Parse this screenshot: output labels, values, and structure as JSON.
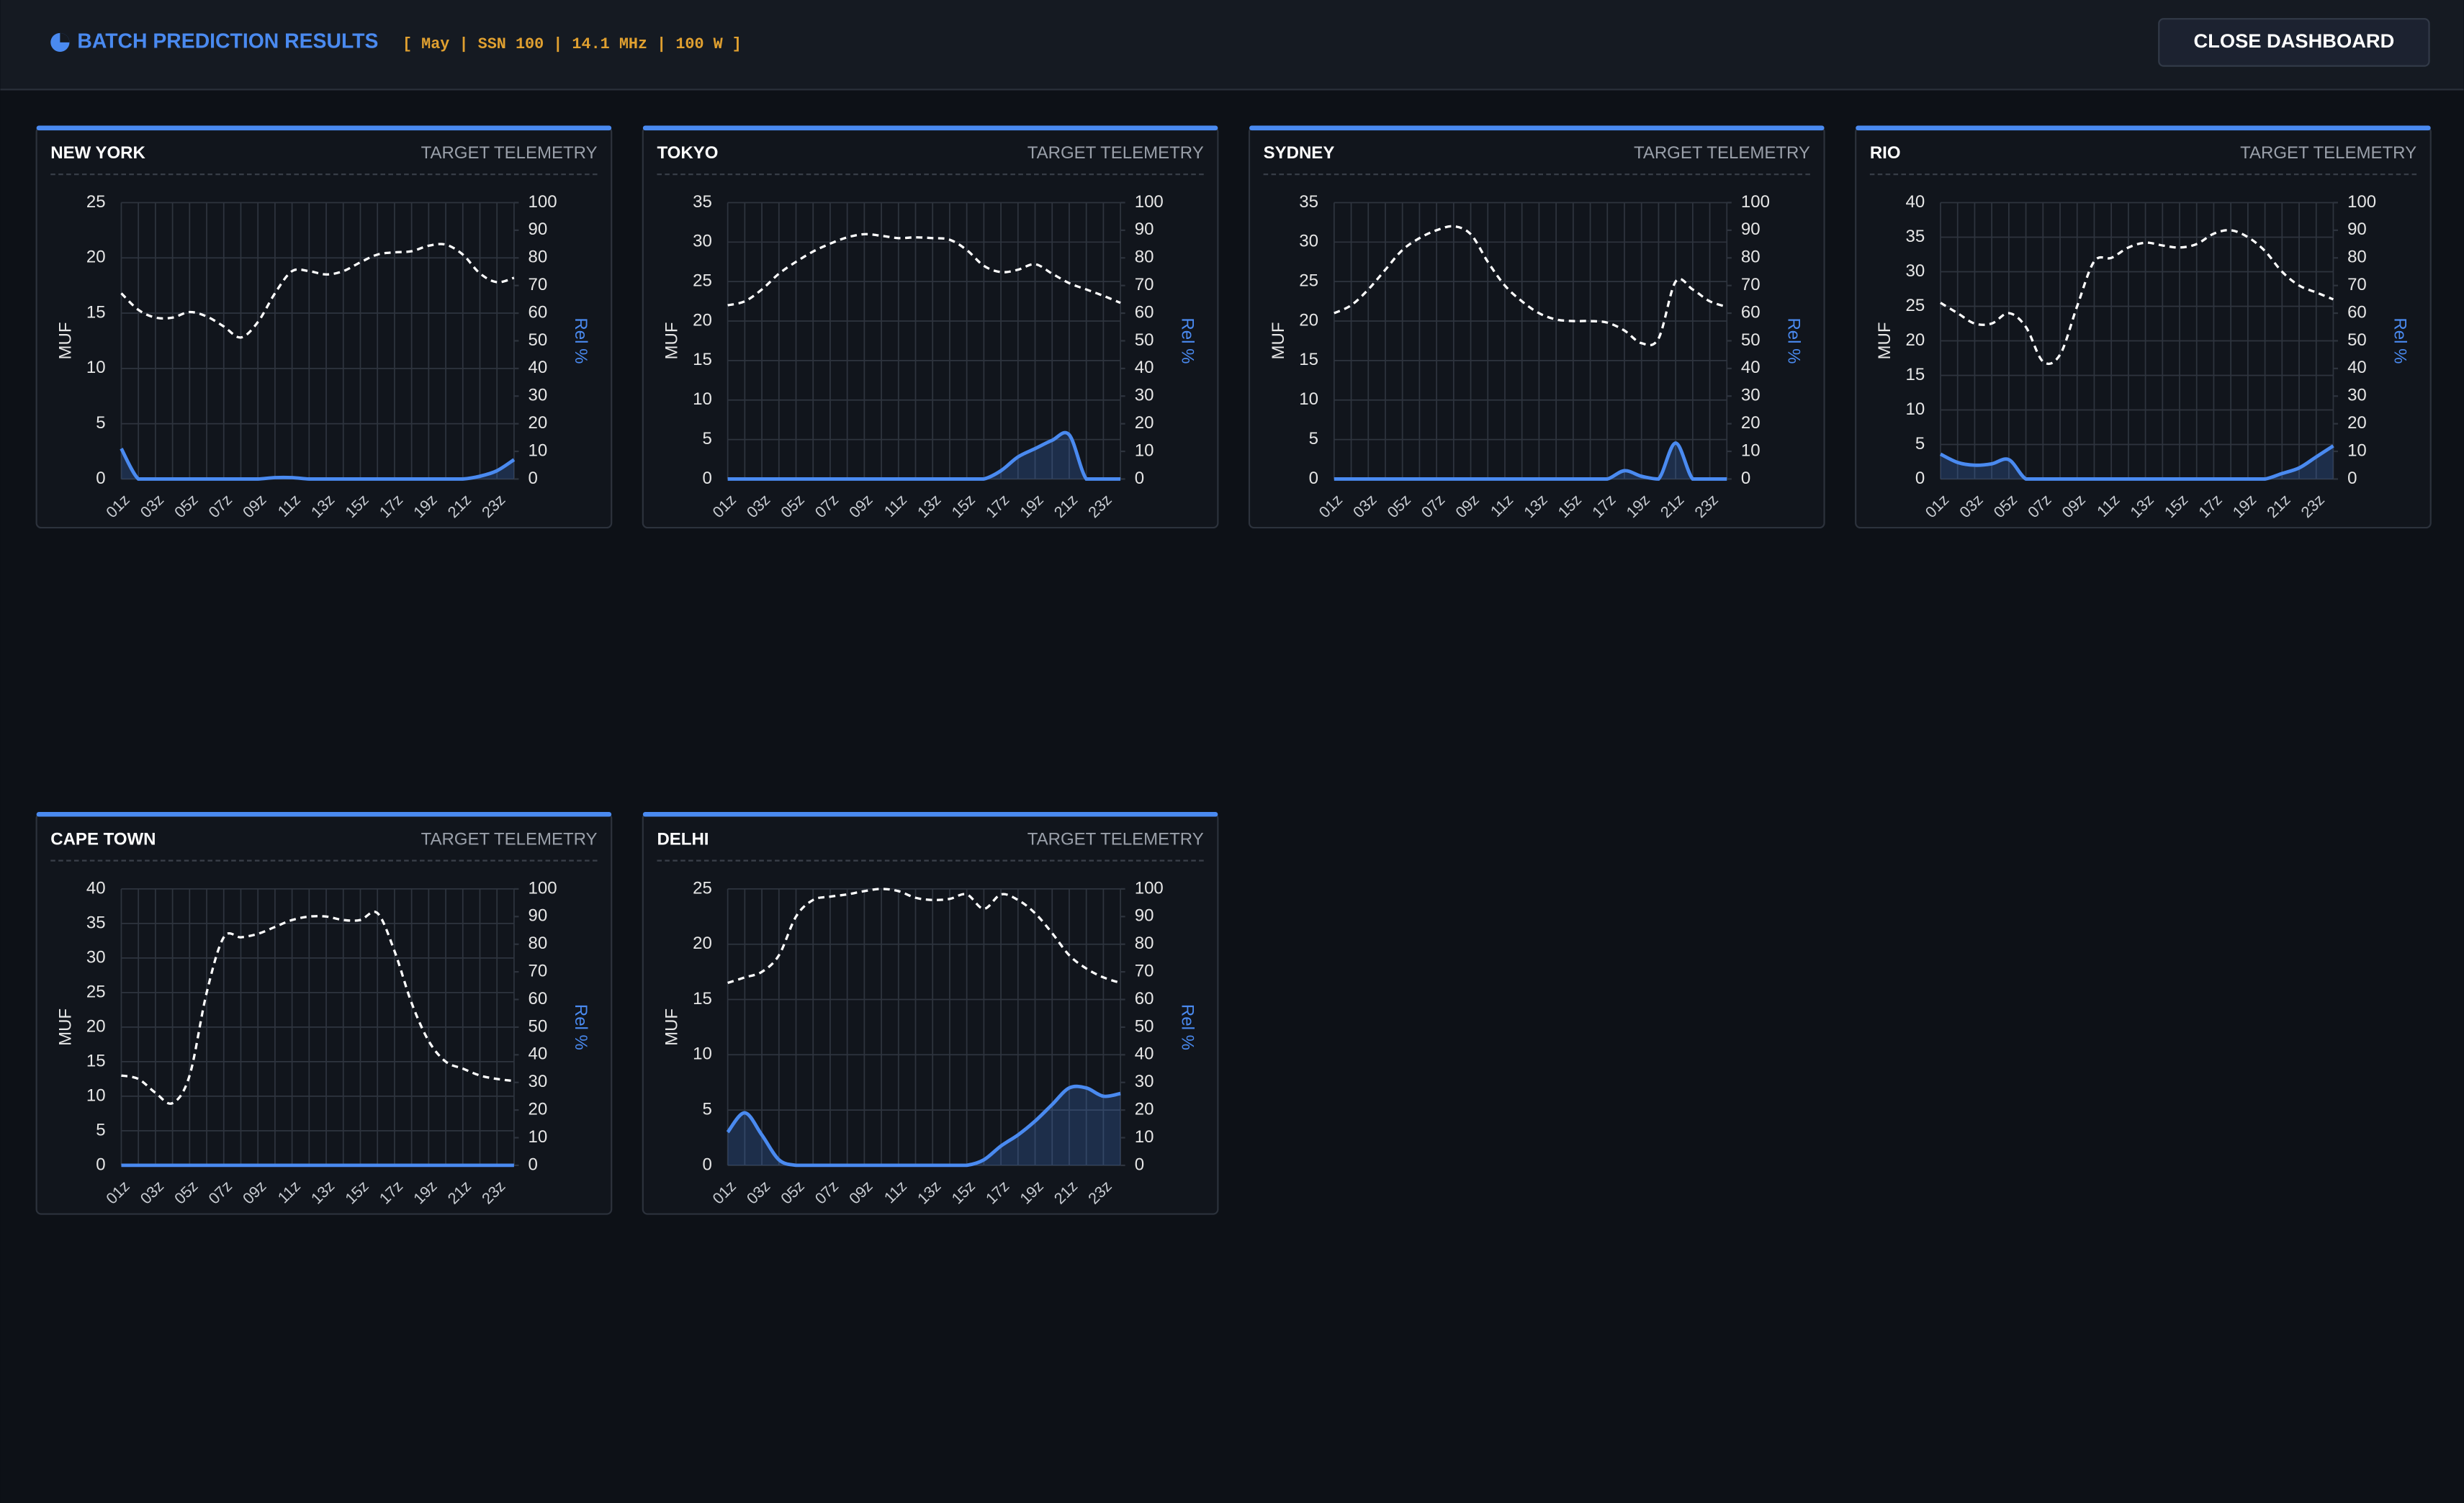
{
  "header": {
    "title": "BATCH PREDICTION RESULTS",
    "params": "[ May | SSN 100 | 14.1 MHz | 100 W ]",
    "close_button": "CLOSE DASHBOARD"
  },
  "chart_data": [
    {
      "type": "line",
      "title": "NEW YORK",
      "subtitle": "TARGET TELEMETRY",
      "ylabel": "MUF",
      "y2label": "Rel %",
      "categories": [
        "01z",
        null,
        "03z",
        null,
        "05z",
        null,
        "07z",
        null,
        "09z",
        null,
        "11z",
        null,
        "13z",
        null,
        "15z",
        null,
        "17z",
        null,
        "19z",
        null,
        "21z",
        null,
        "23z",
        null
      ],
      "series": [
        {
          "color": "#ffffff",
          "values": [
            16.8,
            15.3,
            14.6,
            14.6,
            15.1,
            14.7,
            13.8,
            12.8,
            14.2,
            16.8,
            18.8,
            18.8,
            18.5,
            18.8,
            19.6,
            20.3,
            20.5,
            20.6,
            21.1,
            21.2,
            20.3,
            18.6,
            17.8,
            18.2
          ]
        },
        {
          "color": "#4a8af0",
          "axis": "y2",
          "values": [
            11,
            0,
            0,
            0,
            0,
            0,
            0,
            0,
            0,
            0.5,
            0.5,
            0,
            0,
            0,
            0,
            0,
            0,
            0,
            0,
            0,
            0,
            1,
            3,
            7
          ]
        }
      ],
      "ylim": [
        0,
        25
      ],
      "yticks": [
        0,
        5,
        10,
        15,
        20,
        25
      ],
      "y2lim": [
        0,
        100
      ],
      "y2ticks": [
        0,
        10,
        20,
        30,
        40,
        50,
        60,
        70,
        80,
        90,
        100
      ]
    },
    {
      "type": "line",
      "title": "TOKYO",
      "subtitle": "TARGET TELEMETRY",
      "ylabel": "MUF",
      "y2label": "Rel %",
      "categories": [
        "01z",
        null,
        "03z",
        null,
        "05z",
        null,
        "07z",
        null,
        "09z",
        null,
        "11z",
        null,
        "13z",
        null,
        "15z",
        null,
        "17z",
        null,
        "19z",
        null,
        "21z",
        null,
        "23z",
        null
      ],
      "series": [
        {
          "color": "#ffffff",
          "values": [
            22,
            22.5,
            24,
            26,
            27.5,
            28.8,
            29.8,
            30.6,
            31,
            30.8,
            30.5,
            30.6,
            30.5,
            30.3,
            29,
            27,
            26.2,
            26.5,
            27.2,
            26,
            24.8,
            24,
            23.2,
            22.3
          ]
        },
        {
          "color": "#4a8af0",
          "axis": "y2",
          "values": [
            0,
            0,
            0,
            0,
            0,
            0,
            0,
            0,
            0,
            0,
            0,
            0,
            0,
            0,
            0,
            0,
            3,
            8,
            11,
            14,
            16,
            0,
            0,
            0
          ]
        }
      ],
      "ylim": [
        0,
        35
      ],
      "yticks": [
        0,
        5,
        10,
        15,
        20,
        25,
        30,
        35
      ],
      "y2lim": [
        0,
        100
      ],
      "y2ticks": [
        0,
        10,
        20,
        30,
        40,
        50,
        60,
        70,
        80,
        90,
        100
      ]
    },
    {
      "type": "line",
      "title": "SYDNEY",
      "subtitle": "TARGET TELEMETRY",
      "ylabel": "MUF",
      "y2label": "Rel %",
      "categories": [
        "01z",
        null,
        "03z",
        null,
        "05z",
        null,
        "07z",
        null,
        "09z",
        null,
        "11z",
        null,
        "13z",
        null,
        "15z",
        null,
        "17z",
        null,
        "19z",
        null,
        "21z",
        null,
        "23z",
        null
      ],
      "series": [
        {
          "color": "#ffffff",
          "values": [
            21,
            22,
            24,
            26.5,
            29,
            30.5,
            31.5,
            32,
            31,
            27.5,
            24.5,
            22.5,
            21,
            20.2,
            20,
            20,
            19.8,
            18.8,
            17.2,
            17.8,
            25,
            24,
            22.5,
            21.8
          ]
        },
        {
          "color": "#4a8af0",
          "axis": "y2",
          "values": [
            0,
            0,
            0,
            0,
            0,
            0,
            0,
            0,
            0,
            0,
            0,
            0,
            0,
            0,
            0,
            0,
            0,
            3,
            1,
            0,
            13,
            0,
            0,
            0
          ]
        }
      ],
      "ylim": [
        0,
        35
      ],
      "yticks": [
        0,
        5,
        10,
        15,
        20,
        25,
        30,
        35
      ],
      "y2lim": [
        0,
        100
      ],
      "y2ticks": [
        0,
        10,
        20,
        30,
        40,
        50,
        60,
        70,
        80,
        90,
        100
      ]
    },
    {
      "type": "line",
      "title": "RIO",
      "subtitle": "TARGET TELEMETRY",
      "ylabel": "MUF",
      "y2label": "Rel %",
      "categories": [
        "01z",
        null,
        "03z",
        null,
        "05z",
        null,
        "07z",
        null,
        "09z",
        null,
        "11z",
        null,
        "13z",
        null,
        "15z",
        null,
        "17z",
        null,
        "19z",
        null,
        "21z",
        null,
        "23z",
        null
      ],
      "series": [
        {
          "color": "#ffffff",
          "values": [
            25.5,
            24,
            22.5,
            22.5,
            24,
            22,
            17,
            18,
            25,
            31.5,
            32,
            33.5,
            34.2,
            33.8,
            33.5,
            34,
            35.5,
            36,
            35,
            33,
            30,
            28,
            27,
            26
          ]
        },
        {
          "color": "#4a8af0",
          "axis": "y2",
          "values": [
            9,
            6,
            5,
            5.5,
            7,
            0,
            0,
            0,
            0,
            0,
            0,
            0,
            0,
            0,
            0,
            0,
            0,
            0,
            0,
            0,
            2,
            4,
            8,
            12
          ]
        }
      ],
      "ylim": [
        0,
        40
      ],
      "yticks": [
        0,
        5,
        10,
        15,
        20,
        25,
        30,
        35,
        40
      ],
      "y2lim": [
        0,
        100
      ],
      "y2ticks": [
        0,
        10,
        20,
        30,
        40,
        50,
        60,
        70,
        80,
        90,
        100
      ]
    },
    {
      "type": "line",
      "title": "CAPE TOWN",
      "subtitle": "TARGET TELEMETRY",
      "ylabel": "MUF",
      "y2label": "Rel %",
      "categories": [
        "01z",
        null,
        "03z",
        null,
        "05z",
        null,
        "07z",
        null,
        "09z",
        null,
        "11z",
        null,
        "13z",
        null,
        "15z",
        null,
        "17z",
        null,
        "19z",
        null,
        "21z",
        null,
        "23z",
        null
      ],
      "series": [
        {
          "color": "#ffffff",
          "values": [
            13,
            12.5,
            10.5,
            9,
            13,
            25,
            33,
            33,
            33.5,
            34.5,
            35.5,
            36,
            36,
            35.5,
            35.5,
            36.5,
            31,
            23.5,
            18,
            15,
            14,
            13,
            12.5,
            12.2
          ]
        },
        {
          "color": "#4a8af0",
          "axis": "y2",
          "values": [
            0,
            0,
            0,
            0,
            0,
            0,
            0,
            0,
            0,
            0,
            0,
            0,
            0,
            0,
            0,
            0,
            0,
            0,
            0,
            0,
            0,
            0,
            0,
            0
          ]
        }
      ],
      "ylim": [
        0,
        40
      ],
      "yticks": [
        0,
        5,
        10,
        15,
        20,
        25,
        30,
        35,
        40
      ],
      "y2lim": [
        0,
        100
      ],
      "y2ticks": [
        0,
        10,
        20,
        30,
        40,
        50,
        60,
        70,
        80,
        90,
        100
      ]
    },
    {
      "type": "line",
      "title": "DELHI",
      "subtitle": "TARGET TELEMETRY",
      "ylabel": "MUF",
      "y2label": "Rel %",
      "categories": [
        "01z",
        null,
        "03z",
        null,
        "05z",
        null,
        "07z",
        null,
        "09z",
        null,
        "11z",
        null,
        "13z",
        null,
        "15z",
        null,
        "17z",
        null,
        "19z",
        null,
        "21z",
        null,
        "23z",
        null
      ],
      "series": [
        {
          "color": "#ffffff",
          "values": [
            16.5,
            17,
            17.5,
            19,
            22.5,
            24,
            24.3,
            24.5,
            24.8,
            25,
            24.8,
            24.2,
            24,
            24.1,
            24.5,
            23.2,
            24.5,
            24,
            22.8,
            21,
            19,
            17.8,
            17,
            16.5
          ]
        },
        {
          "color": "#4a8af0",
          "axis": "y2",
          "values": [
            12,
            19,
            11,
            2,
            0,
            0,
            0,
            0,
            0,
            0,
            0,
            0,
            0,
            0,
            0,
            2,
            7,
            11,
            16,
            22,
            28,
            28,
            25,
            26
          ]
        }
      ],
      "ylim": [
        0,
        25
      ],
      "yticks": [
        0,
        5,
        10,
        15,
        20,
        25
      ],
      "y2lim": [
        0,
        100
      ],
      "y2ticks": [
        0,
        10,
        20,
        30,
        40,
        50,
        60,
        70,
        80,
        90,
        100
      ]
    }
  ]
}
